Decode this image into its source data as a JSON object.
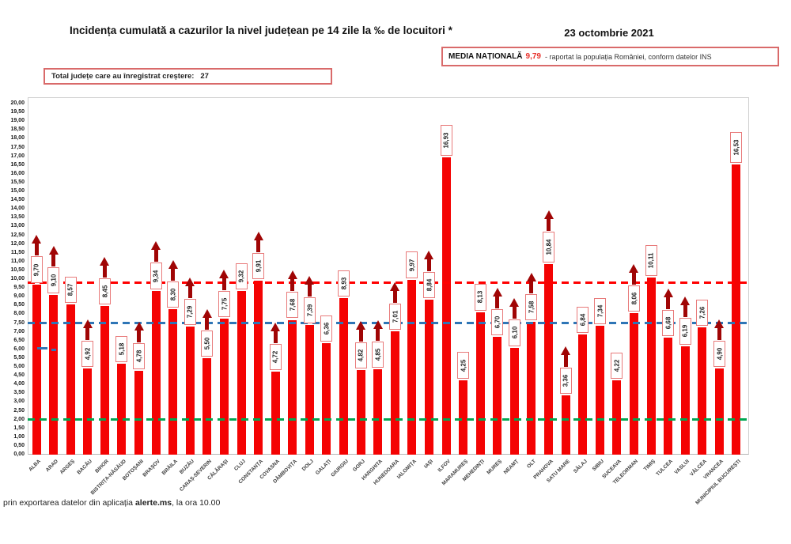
{
  "header": {
    "title": "Incidența cumulată a cazurilor la nivel județean pe 14 zile la ‰ de locuitori *",
    "date": "23 octombrie 2021",
    "national_average": {
      "label": "MEDIA NAȚIONALĂ",
      "value": "9,79",
      "note": "-  raportat la populația României, conform datelor INS"
    },
    "total_increase": {
      "label": "Total județe care au înregistrat creștere:",
      "value": "27"
    }
  },
  "chart_data": {
    "type": "bar",
    "title": "Incidența cumulată a cazurilor la nivel județean pe 14 zile la ‰ de locuitori",
    "xlabel": "",
    "ylabel": "",
    "ylim": [
      0,
      20
    ],
    "ytick_step": 0.5,
    "grid": false,
    "bar_color": "#f40303",
    "arrow_color": "#a00505",
    "reference_lines": [
      {
        "name": "national-average",
        "value": 9.79,
        "color": "#ff0000"
      },
      {
        "name": "threshold-7-5",
        "value": 7.5,
        "color": "#2e75b6"
      },
      {
        "name": "threshold-2-0",
        "value": 2.0,
        "color": "#00a651"
      }
    ],
    "extra_markers": [
      {
        "county_index": 0,
        "value": 6.05,
        "width": 13
      },
      {
        "county_index": 1,
        "value": 5.95,
        "width": 6
      }
    ],
    "categories": [
      "ALBA",
      "ARAD",
      "ARGEȘ",
      "BACĂU",
      "BIHOR",
      "BISTRIȚA-NĂSĂUD",
      "BOTOȘANI",
      "BRAȘOV",
      "BRĂILA",
      "BUZĂU",
      "CARAȘ-SEVERIN",
      "CĂLĂRAȘI",
      "CLUJ",
      "CONSTANȚA",
      "COVASNA",
      "DÂMBOVIȚA",
      "DOLJ",
      "GALAȚI",
      "GIURGIU",
      "GORJ",
      "HARGHITA",
      "HUNEDOARA",
      "IALOMIȚA",
      "IAȘI",
      "ILFOV",
      "MARAMUREȘ",
      "MEHEDINȚI",
      "MUREȘ",
      "NEAMȚ",
      "OLT",
      "PRAHOVA",
      "SATU MARE",
      "SĂLAJ",
      "SIBIU",
      "SUCEAVA",
      "TELEORMAN",
      "TIMIȘ",
      "TULCEA",
      "VASLUI",
      "VÂLCEA",
      "VRANCEA",
      "MUNICIPIUL BUCUREȘTI"
    ],
    "values": [
      9.7,
      9.1,
      8.57,
      4.92,
      8.45,
      5.18,
      4.78,
      9.34,
      8.3,
      7.29,
      5.5,
      7.75,
      9.32,
      9.91,
      4.72,
      7.68,
      7.39,
      6.36,
      8.93,
      4.82,
      4.85,
      7.01,
      9.97,
      8.84,
      16.93,
      4.25,
      8.13,
      6.7,
      6.1,
      7.58,
      10.84,
      3.36,
      6.84,
      7.34,
      4.22,
      8.06,
      10.11,
      6.68,
      6.19,
      7.26,
      4.9,
      16.53
    ],
    "labels": [
      "9,70",
      "9,10",
      "8,57",
      "4,92",
      "8,45",
      "5,18",
      "4,78",
      "9,34",
      "8,30",
      "7,29",
      "5,50",
      "7,75",
      "9,32",
      "9,91",
      "4,72",
      "7,68",
      "7,39",
      "6,36",
      "8,93",
      "4,82",
      "4,85",
      "7,01",
      "9,97",
      "8,84",
      "16,93",
      "4,25",
      "8,13",
      "6,70",
      "6,10",
      "7,58",
      "10,84",
      "3,36",
      "6,84",
      "7,34",
      "4,22",
      "8,06",
      "10,11",
      "6,68",
      "6,19",
      "7,26",
      "4,90",
      "16,53"
    ],
    "increase": [
      true,
      true,
      false,
      true,
      true,
      false,
      true,
      true,
      true,
      true,
      true,
      true,
      false,
      true,
      true,
      true,
      true,
      false,
      false,
      true,
      true,
      true,
      false,
      true,
      false,
      false,
      false,
      true,
      true,
      true,
      true,
      true,
      false,
      false,
      false,
      true,
      false,
      true,
      true,
      false,
      true,
      false
    ]
  },
  "footer": {
    "prefix": "prin exportarea datelor din aplicația ",
    "app": "alerte.ms",
    "suffix": ", la ora 10.00"
  }
}
